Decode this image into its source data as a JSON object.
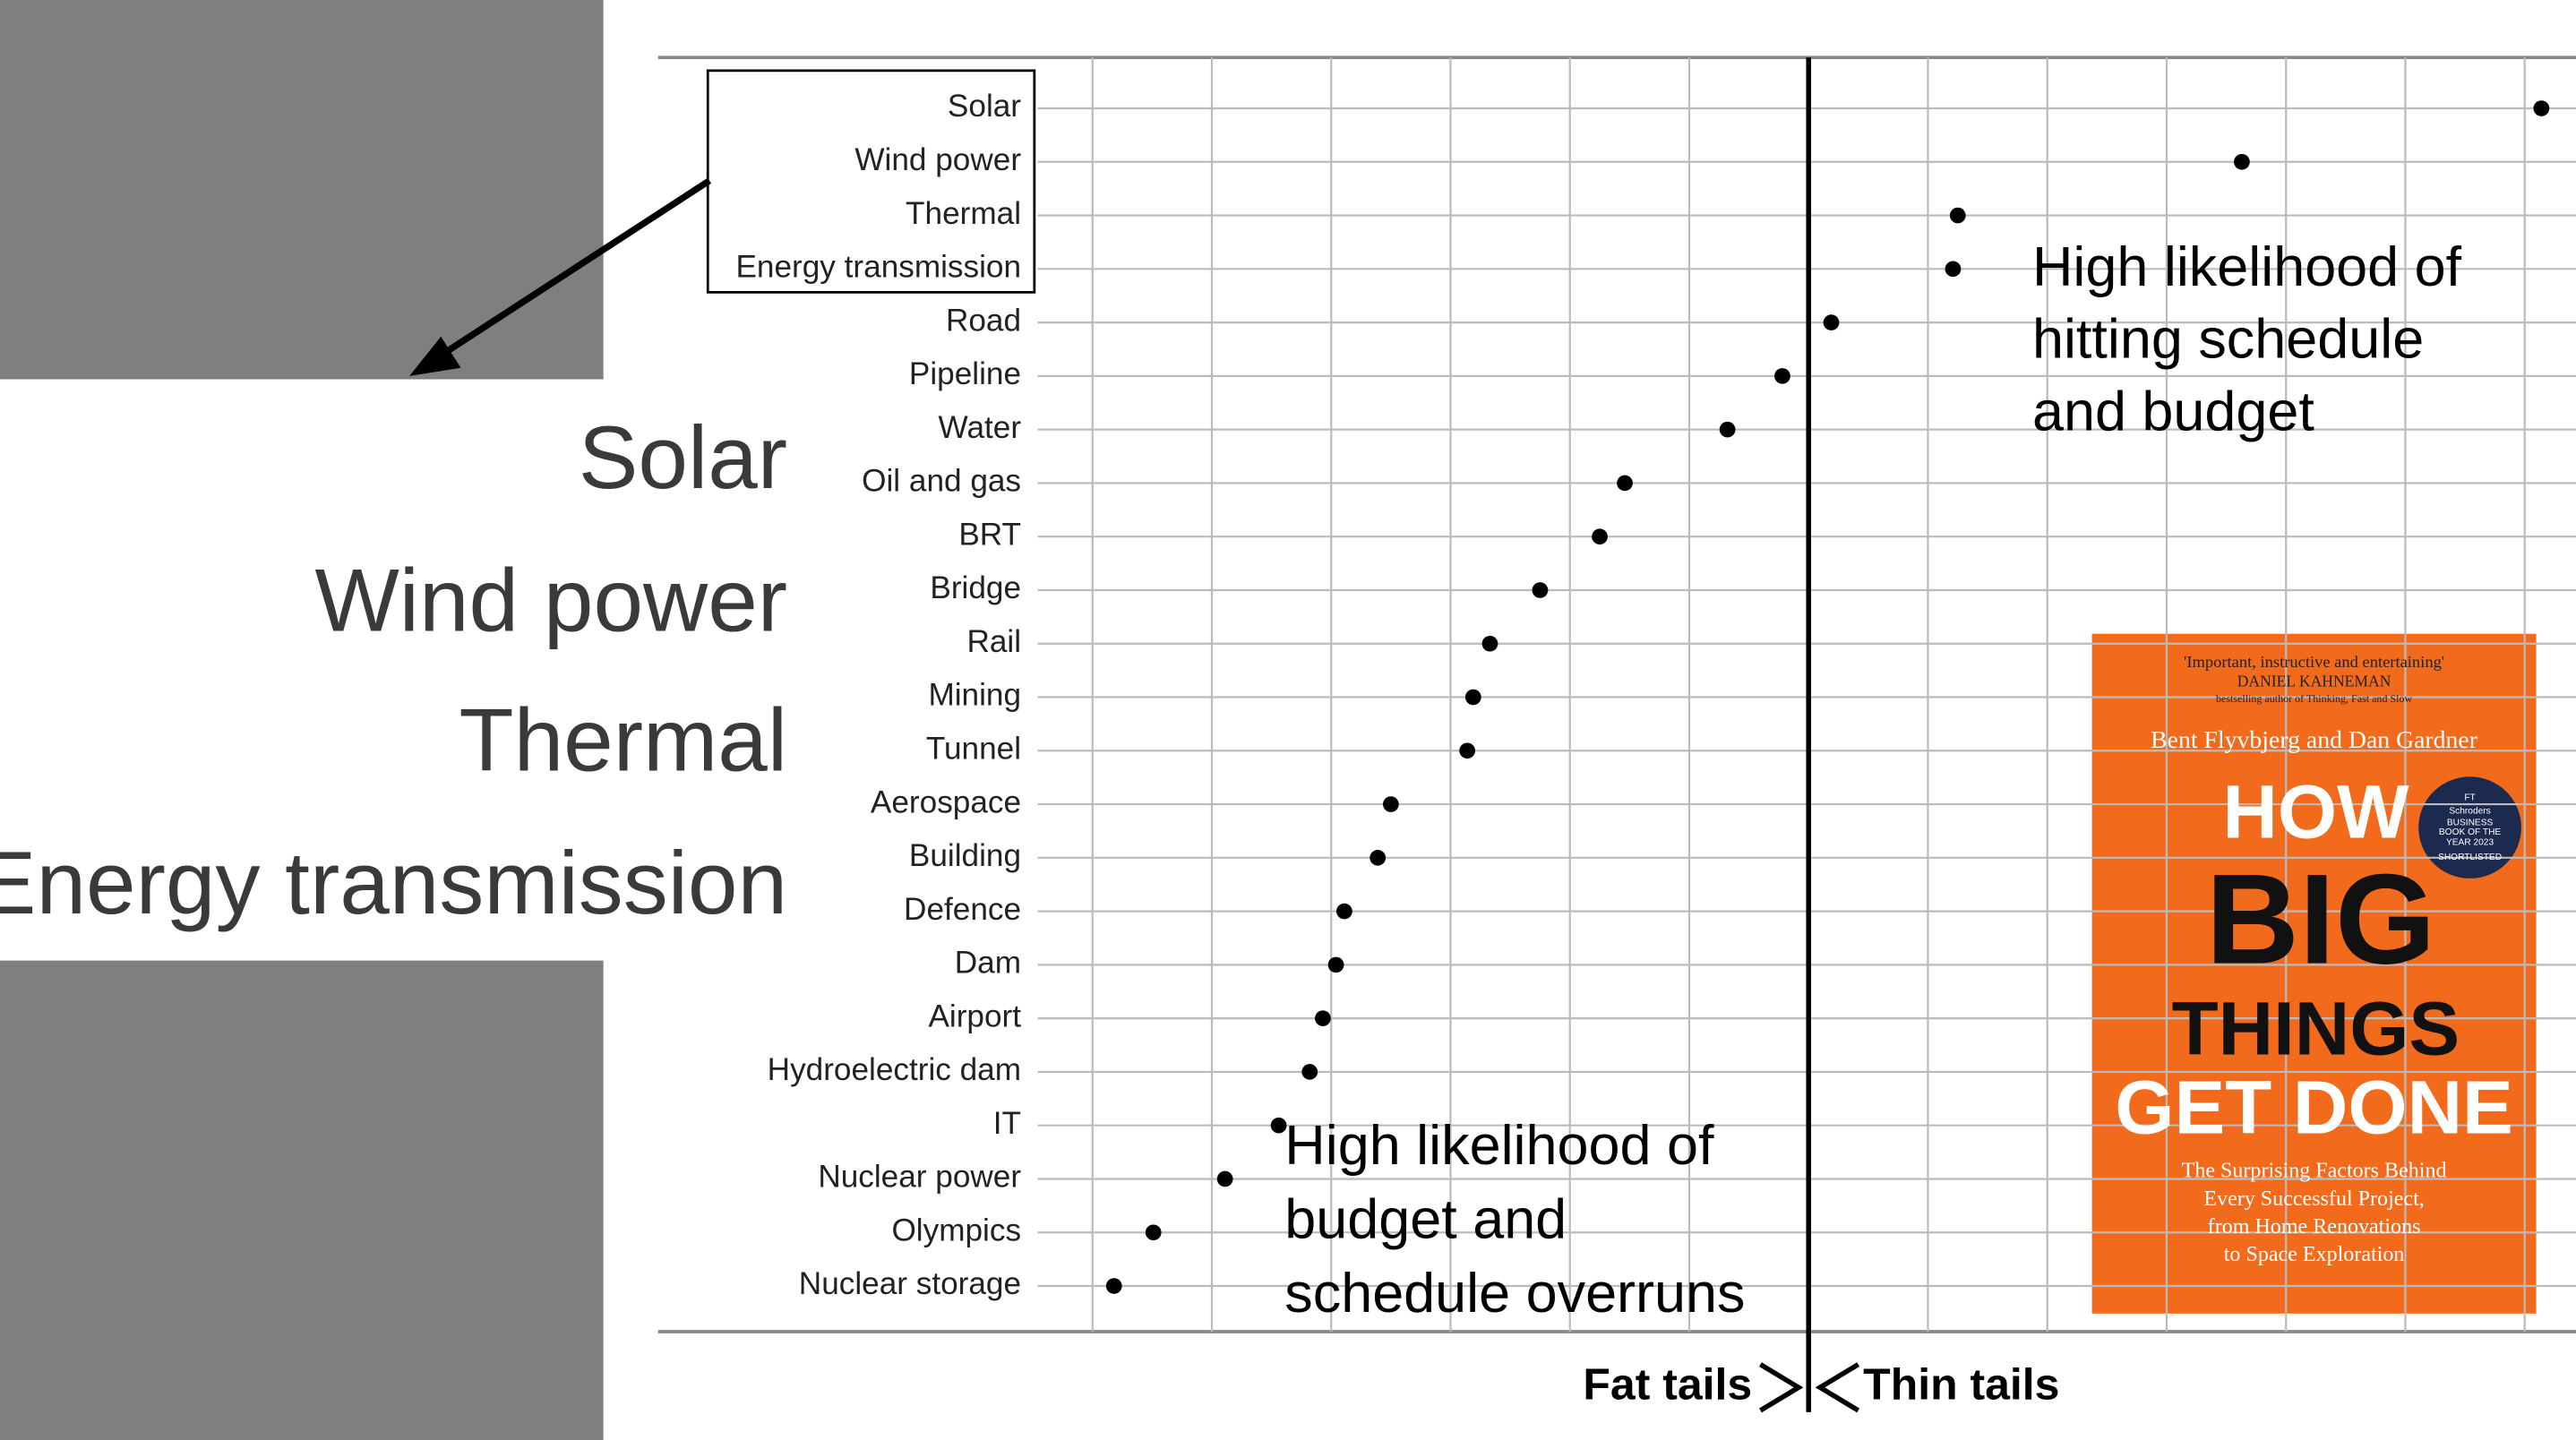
{
  "chart_data": {
    "type": "dot",
    "categories": [
      "Solar",
      "Wind power",
      "Thermal",
      "Energy transmission",
      "Road",
      "Pipeline",
      "Water",
      "Oil and gas",
      "BRT",
      "Bridge",
      "Rail",
      "Mining",
      "Tunnel",
      "Aerospace",
      "Building",
      "Defence",
      "Dam",
      "Airport",
      "Hydroelectric dam",
      "IT",
      "Nuclear power",
      "Olympics",
      "Nuclear storage"
    ],
    "values": [
      6.14,
      3.63,
      1.25,
      1.21,
      0.19,
      -0.22,
      -0.68,
      -1.54,
      -1.75,
      -2.25,
      -2.67,
      -2.81,
      -2.86,
      -3.5,
      -3.61,
      -3.89,
      -3.96,
      -4.07,
      -4.18,
      -4.44,
      -4.89,
      -5.49,
      -5.82
    ],
    "color": "#000000",
    "xlim": [
      -9.64,
      6.43
    ],
    "xticks": [
      -6,
      -5,
      -4,
      -3,
      -2,
      -1,
      0,
      1,
      2,
      3,
      4,
      5,
      6
    ],
    "tick_labels": false,
    "grid": true,
    "reference_line": 0,
    "annotations": {
      "right": [
        "High likelihood of",
        "hitting schedule",
        "and budget"
      ],
      "left": [
        "High likelihood of",
        "budget and",
        "schedule overruns"
      ],
      "fat": "Fat tails",
      "thin": "Thin tails"
    }
  },
  "book": {
    "quote": "'Important, instructive and entertaining'",
    "quote_author": "DANIEL KAHNEMAN",
    "quote_note": "bestselling author of Thinking, Fast and Slow",
    "authors": "Bent Flyvbjerg and Dan Gardner",
    "title": [
      "HOW",
      "BIG",
      "THINGS",
      "GET DONE"
    ],
    "badge": [
      "FT",
      "Schroders",
      "BUSINESS",
      "BOOK OF THE",
      "YEAR 2023",
      "SHORTLISTED"
    ],
    "subtitle": [
      "The Surprising Factors Behind",
      "Every Successful Project,",
      "from Home Renovations",
      "to Space Exploration"
    ]
  }
}
